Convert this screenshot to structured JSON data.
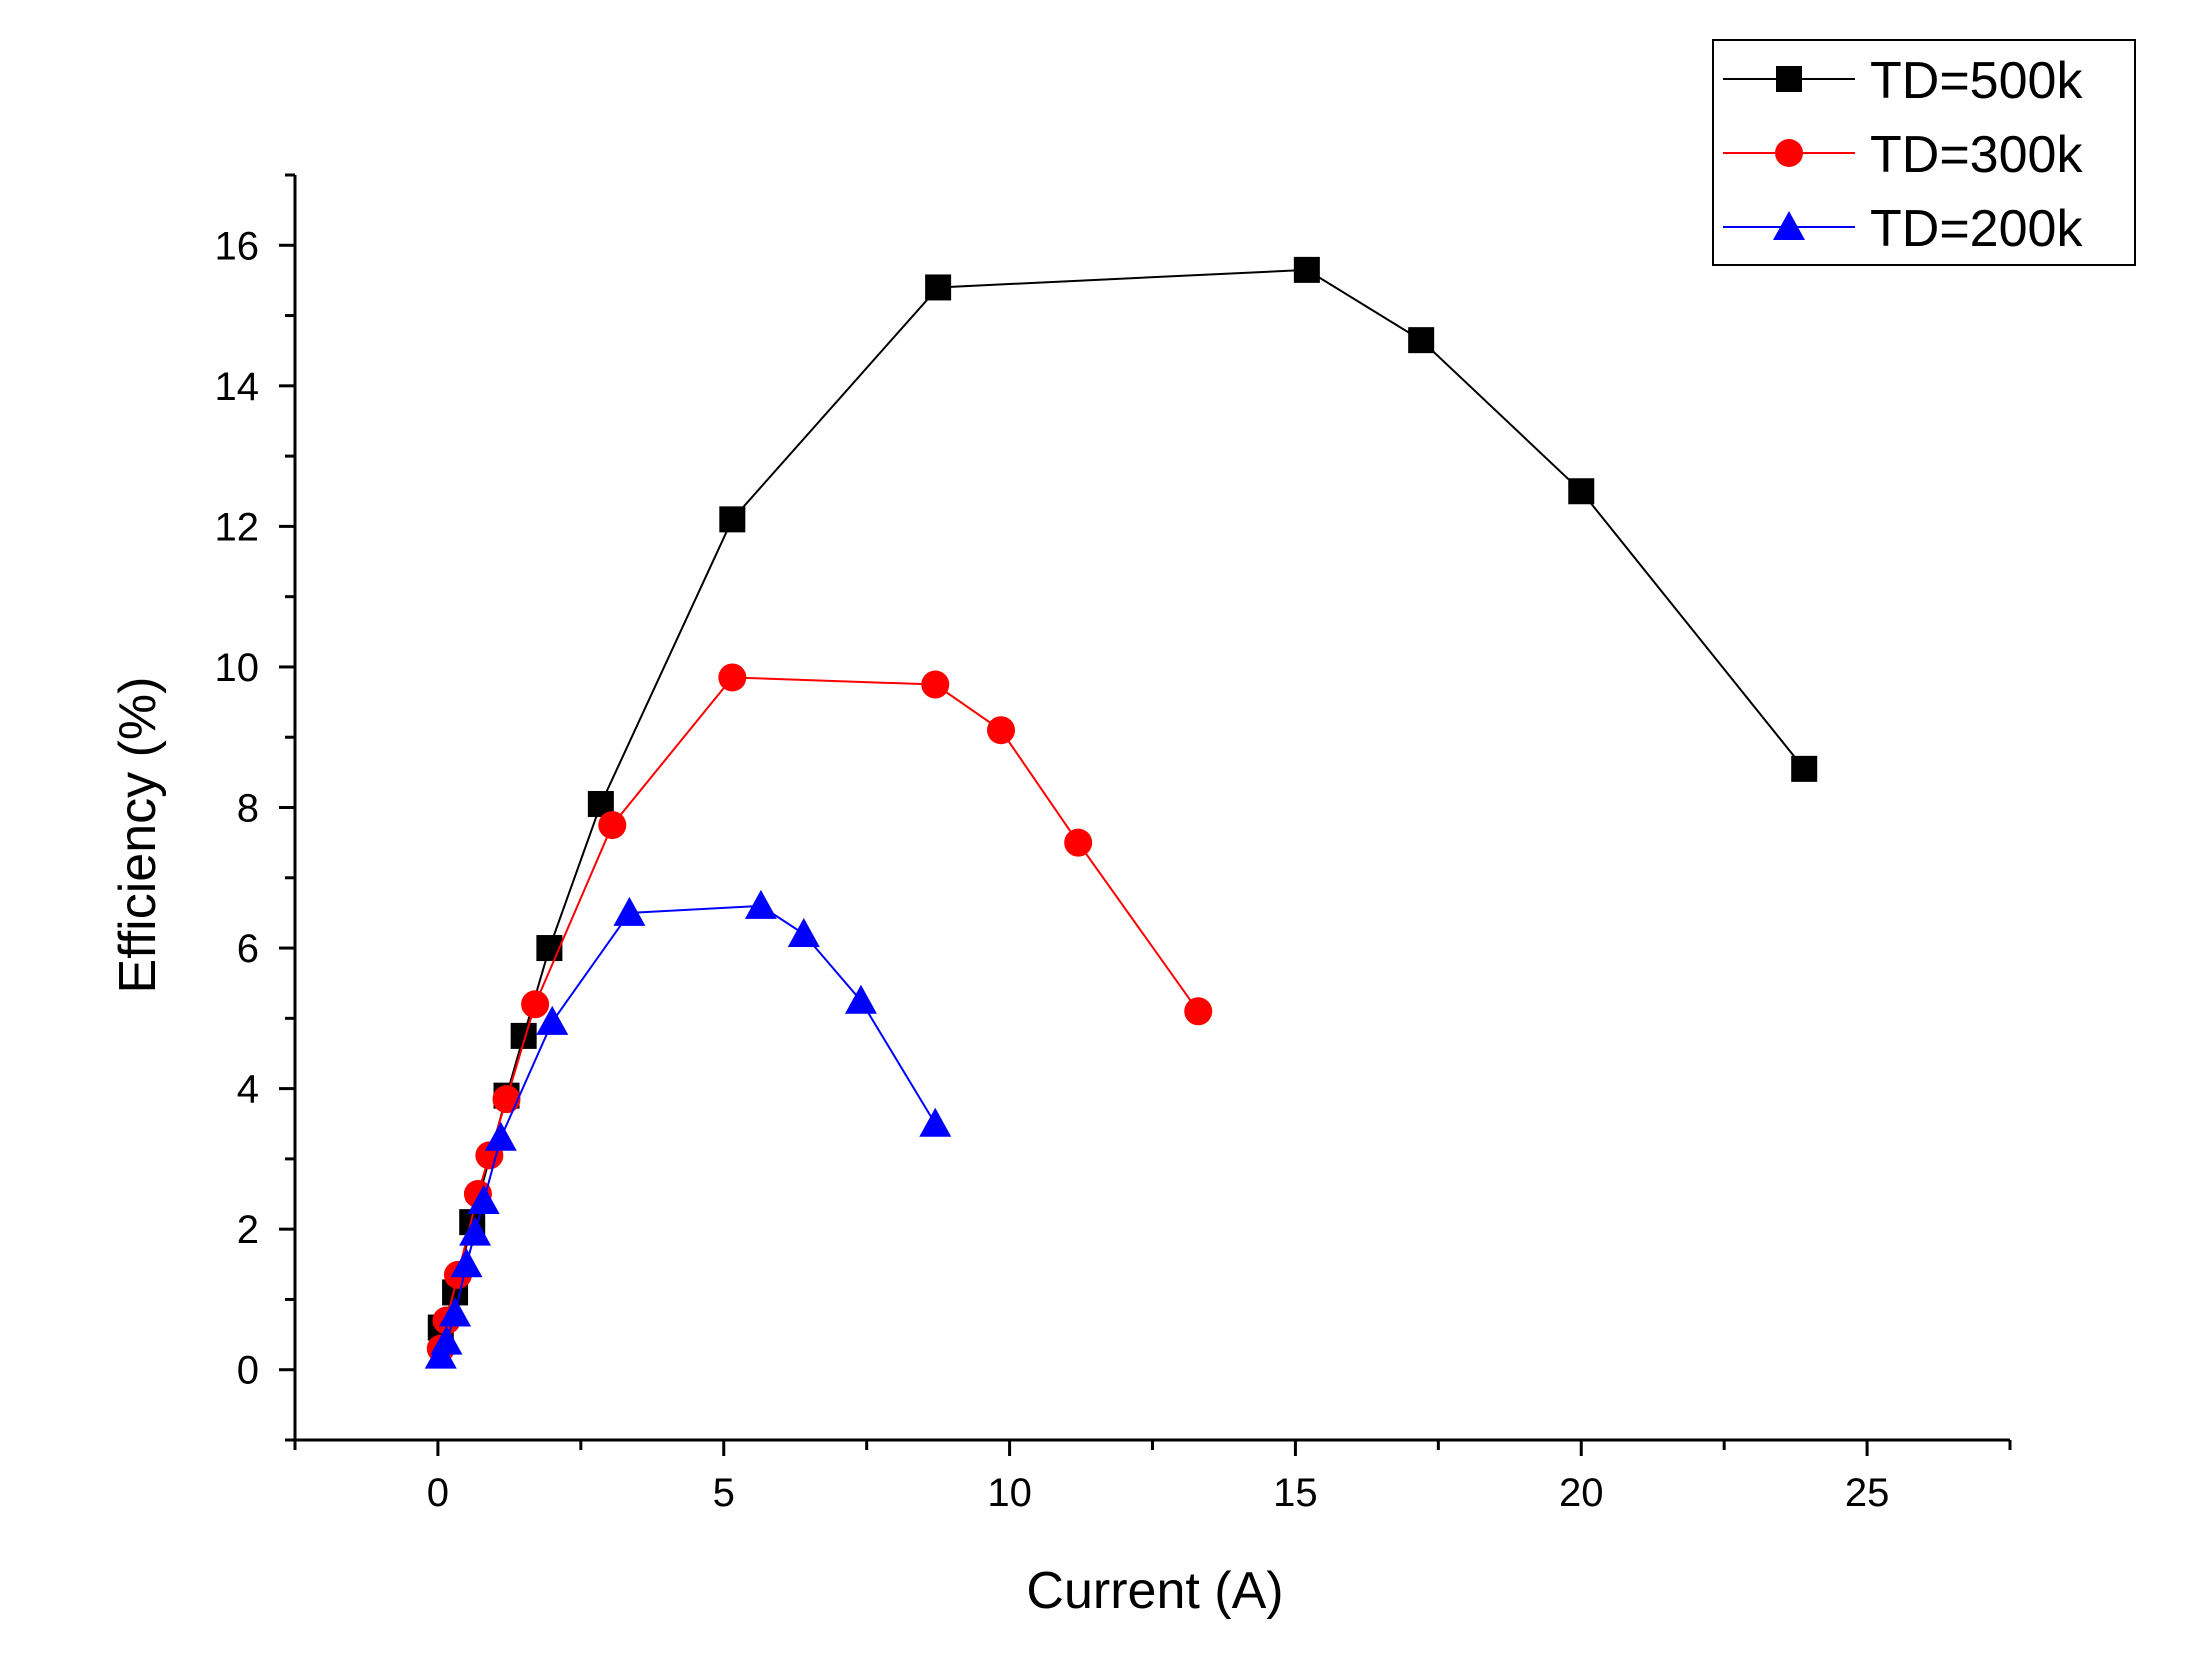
{
  "chart_data": {
    "type": "line",
    "title": "",
    "xlabel": "Current (A)",
    "ylabel": "Efficiency (%)",
    "xlim": [
      -2.5,
      27.5
    ],
    "ylim": [
      -1,
      17
    ],
    "xticks": [
      0,
      5,
      10,
      15,
      20,
      25
    ],
    "yticks": [
      0,
      2,
      4,
      6,
      8,
      10,
      12,
      14,
      16
    ],
    "grid": false,
    "legend_position": "top-right",
    "series": [
      {
        "name": "TD=500k",
        "color": "#000000",
        "marker": "square",
        "x": [
          0.05,
          0.3,
          0.6,
          1.2,
          1.5,
          1.95,
          2.85,
          5.15,
          8.75,
          15.2,
          17.2,
          20.0,
          23.9
        ],
        "y": [
          0.6,
          1.1,
          2.1,
          3.9,
          4.75,
          6.0,
          8.05,
          12.1,
          15.4,
          15.65,
          14.65,
          12.5,
          8.55
        ]
      },
      {
        "name": "TD=300k",
        "color": "#ff0000",
        "marker": "circle",
        "x": [
          0.05,
          0.15,
          0.35,
          0.7,
          0.9,
          1.2,
          1.7,
          3.05,
          5.15,
          8.7,
          9.85,
          11.2,
          13.3
        ],
        "y": [
          0.3,
          0.7,
          1.35,
          2.5,
          3.05,
          3.85,
          5.2,
          7.75,
          9.85,
          9.75,
          9.1,
          7.5,
          5.1
        ]
      },
      {
        "name": "TD=200k",
        "color": "#0000ff",
        "marker": "triangle",
        "x": [
          0.05,
          0.15,
          0.3,
          0.5,
          0.65,
          0.8,
          1.1,
          2.0,
          3.35,
          5.65,
          6.4,
          7.4,
          8.7
        ],
        "y": [
          0.2,
          0.4,
          0.8,
          1.5,
          1.95,
          2.4,
          3.3,
          4.95,
          6.5,
          6.6,
          6.2,
          5.25,
          3.5
        ]
      }
    ]
  }
}
